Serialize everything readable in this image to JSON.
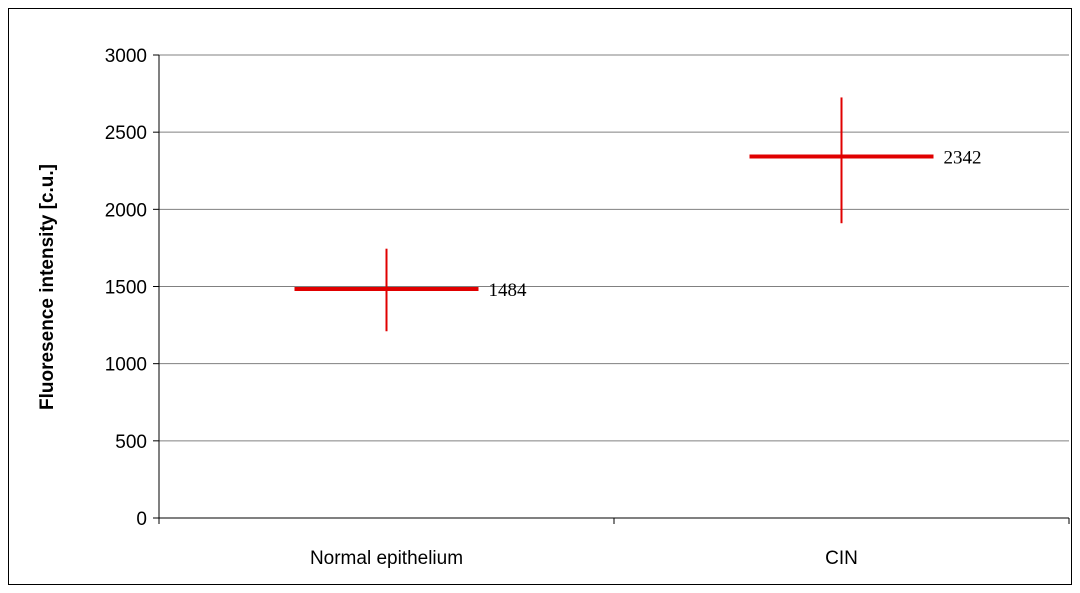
{
  "chart_data": {
    "type": "scatter",
    "title": "",
    "xlabel": "",
    "ylabel": "Fluoresence intensity [c.u.]",
    "categories": [
      "Normal epithelium",
      "CIN"
    ],
    "series": [
      {
        "values": [
          1484,
          2342
        ],
        "error_low": [
          1210,
          1910
        ],
        "error_high": [
          1745,
          2725
        ],
        "data_labels": [
          "1484",
          "2342"
        ]
      }
    ],
    "ylim": [
      0,
      3000
    ],
    "yticks": [
      0,
      500,
      1000,
      1500,
      2000,
      2500,
      3000
    ],
    "ytick_labels": [
      "0",
      "500",
      "1000",
      "1500",
      "2000",
      "2500",
      "3000"
    ],
    "grid": true,
    "legend": "none",
    "colors": {
      "marker": "#e00000",
      "grid": "#808080",
      "axis": "#000000"
    }
  }
}
